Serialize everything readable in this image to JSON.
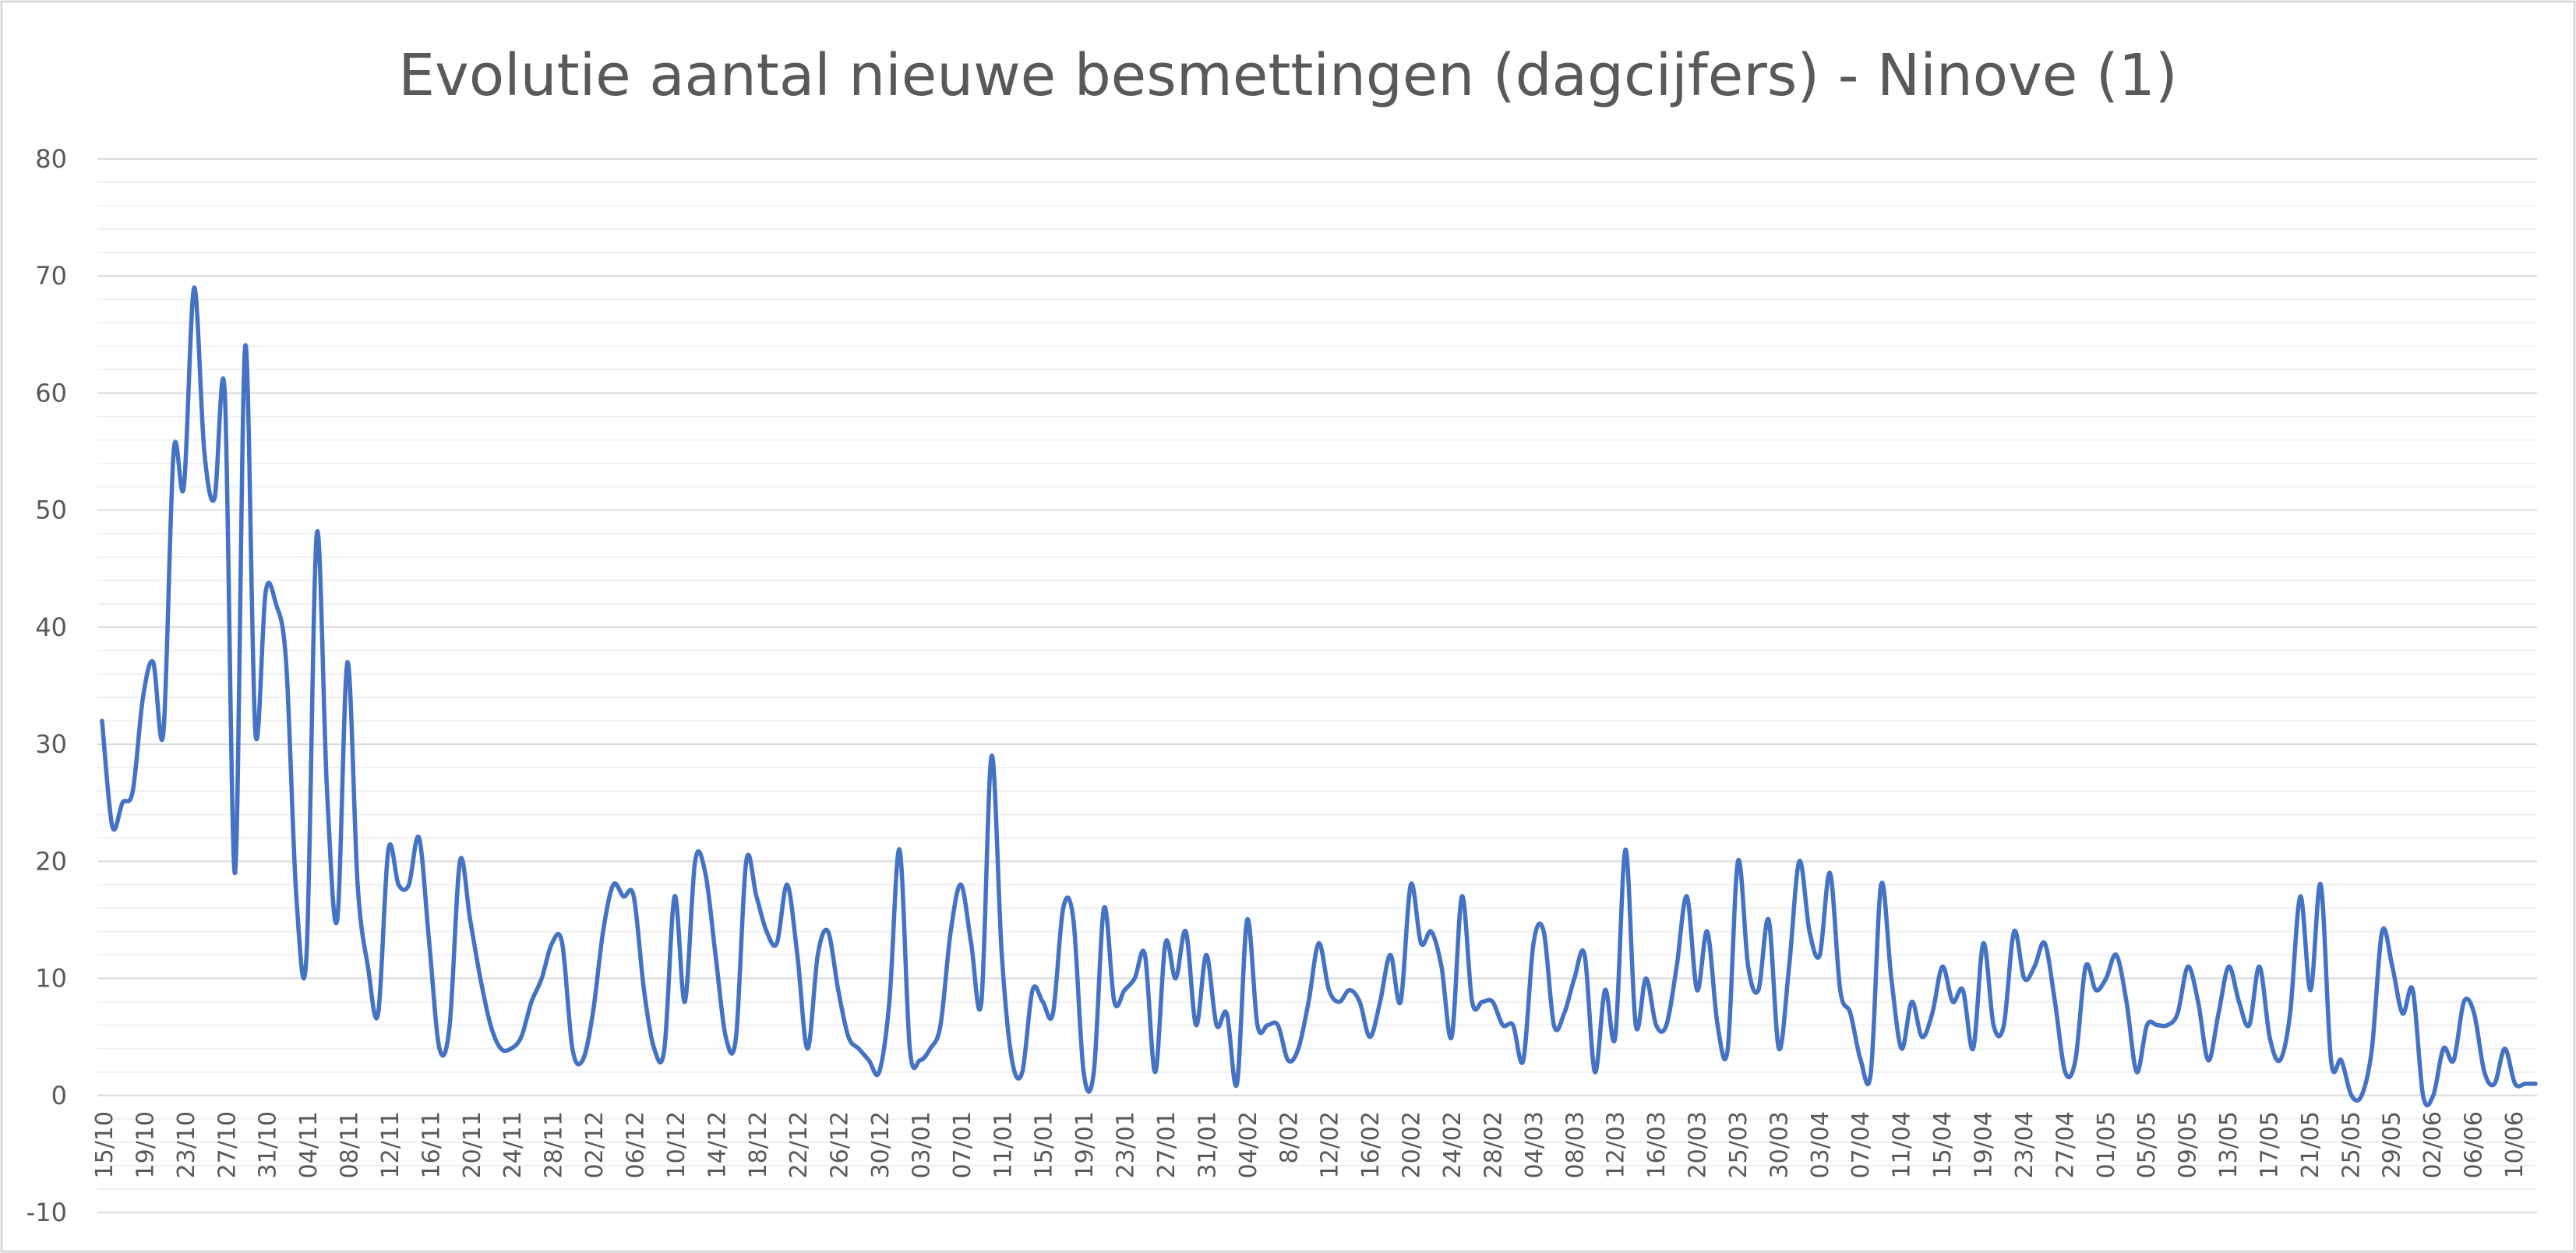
{
  "chart_data": {
    "type": "line",
    "title": "Evolutie aantal nieuwe besmettingen (dagcijfers) - Ninove (1)",
    "xlabel": "",
    "ylabel": "",
    "ylim": [
      -10,
      80
    ],
    "yticks": [
      -10,
      0,
      10,
      20,
      30,
      40,
      50,
      60,
      70,
      80
    ],
    "grid": true,
    "legend": "none",
    "color": "#4472c4",
    "x_tick_labels": [
      "15/10",
      "19/10",
      "23/10",
      "27/10",
      "31/10",
      "04/11",
      "08/11",
      "12/11",
      "16/11",
      "20/11",
      "24/11",
      "28/11",
      "02/12",
      "06/12",
      "10/12",
      "14/12",
      "18/12",
      "22/12",
      "26/12",
      "30/12",
      "03/01",
      "07/01",
      "11/01",
      "15/01",
      "19/01",
      "23/01",
      "27/01",
      "31/01",
      "04/02",
      "8/02",
      "12/02",
      "16/02",
      "20/02",
      "24/02",
      "28/02",
      "04/03",
      "08/03",
      "12/03",
      "16/03",
      "20/03",
      "25/03",
      "30/03",
      "03/04",
      "07/04",
      "11/04",
      "15/04",
      "19/04",
      "23/04",
      "27/04",
      "01/05",
      "05/05",
      "09/05",
      "13/05",
      "17/05",
      "21/05",
      "25/05",
      "29/05",
      "02/06",
      "06/06",
      "10/06"
    ],
    "series": [
      {
        "values": [
          32,
          23,
          25,
          26,
          34,
          37,
          31,
          55,
          52,
          69,
          55,
          51,
          60,
          19,
          64,
          31,
          43,
          42,
          37,
          17,
          12,
          48,
          26,
          15,
          37,
          18,
          11,
          7,
          21,
          18,
          18,
          22,
          13,
          4,
          6,
          20,
          15,
          10,
          6,
          4,
          4,
          5,
          8,
          10,
          13,
          13,
          4,
          3,
          7,
          14,
          18,
          17,
          17,
          9,
          4,
          4,
          17,
          8,
          20,
          19,
          12,
          5,
          5,
          20,
          17,
          14,
          13,
          18,
          12,
          4,
          12,
          14,
          9,
          5,
          4,
          3,
          2,
          8,
          21,
          4,
          3,
          4,
          6,
          14,
          18,
          13,
          8,
          29,
          12,
          3,
          2,
          9,
          8,
          7,
          16,
          15,
          2,
          2,
          16,
          8,
          9,
          10,
          12,
          2,
          13,
          10,
          14,
          6,
          12,
          6,
          7,
          1,
          15,
          6,
          6,
          6,
          3,
          4,
          8,
          13,
          9,
          8,
          9,
          8,
          5,
          8,
          12,
          8,
          18,
          13,
          14,
          11,
          5,
          17,
          8,
          8,
          8,
          6,
          6,
          3,
          13,
          14,
          6,
          7,
          10,
          12,
          2,
          9,
          5,
          21,
          6,
          10,
          6,
          6,
          11,
          17,
          9,
          14,
          6,
          4,
          20,
          11,
          9,
          15,
          4,
          11,
          20,
          14,
          12,
          19,
          9,
          7,
          3,
          2,
          18,
          10,
          4,
          8,
          5,
          7,
          11,
          8,
          9,
          4,
          13,
          6,
          6,
          14,
          10,
          11,
          13,
          8,
          2,
          3,
          11,
          9,
          10,
          12,
          8,
          2,
          6,
          6,
          6,
          7,
          11,
          8,
          3,
          7,
          11,
          8,
          6,
          11,
          5,
          3,
          7,
          17,
          9,
          18,
          3,
          3,
          0,
          0,
          4,
          14,
          11,
          7,
          9,
          0,
          0,
          4,
          3,
          8,
          7,
          2,
          1,
          4,
          1,
          1,
          1
        ]
      }
    ]
  }
}
